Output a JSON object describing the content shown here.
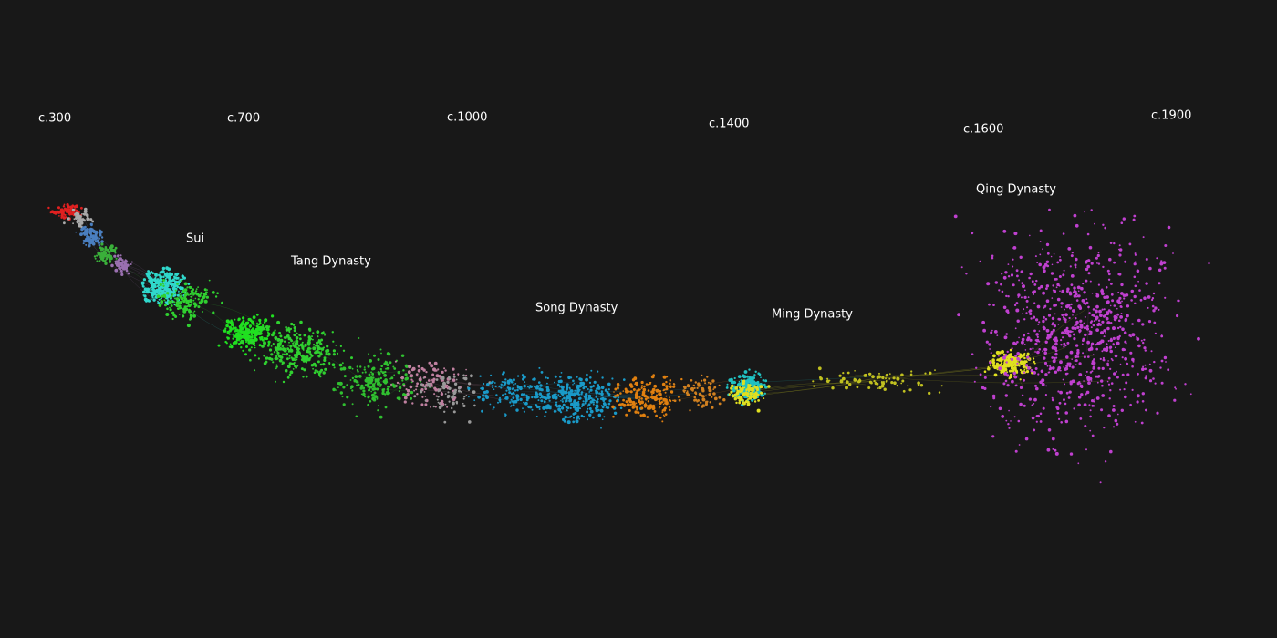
{
  "time_labels": [
    "c.300",
    "c.700",
    "c.1000",
    "c.1400",
    "c.1600",
    "c.1900"
  ],
  "dynasty_labels": [
    "Sui",
    "Tang Dynasty",
    "Song Dynasty",
    "Ming Dynasty",
    "Qing Dynasty"
  ]
}
